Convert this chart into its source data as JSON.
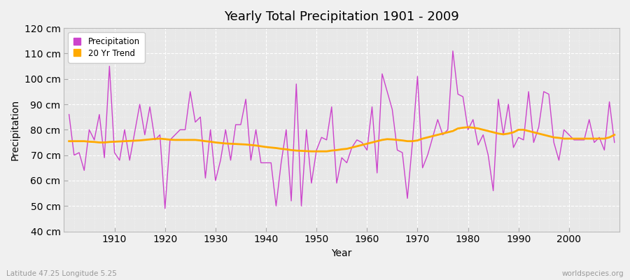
{
  "title": "Yearly Total Precipitation 1901 - 2009",
  "xlabel": "Year",
  "ylabel": "Precipitation",
  "subtitle": "Latitude 47.25 Longitude 5.25",
  "watermark": "worldspecies.org",
  "bg_color": "#f0f0f0",
  "plot_bg_color": "#e8e8e8",
  "precip_color": "#cc44cc",
  "trend_color": "#ffaa00",
  "precip_label": "Precipitation",
  "trend_label": "20 Yr Trend",
  "ylim": [
    40,
    120
  ],
  "yticks": [
    40,
    50,
    60,
    70,
    80,
    90,
    100,
    110,
    120
  ],
  "xticks": [
    1910,
    1920,
    1930,
    1940,
    1950,
    1960,
    1970,
    1980,
    1990,
    2000
  ],
  "years": [
    1901,
    1902,
    1903,
    1904,
    1905,
    1906,
    1907,
    1908,
    1909,
    1910,
    1911,
    1912,
    1913,
    1914,
    1915,
    1916,
    1917,
    1918,
    1919,
    1920,
    1921,
    1922,
    1923,
    1924,
    1925,
    1926,
    1927,
    1928,
    1929,
    1930,
    1931,
    1932,
    1933,
    1934,
    1935,
    1936,
    1937,
    1938,
    1939,
    1940,
    1941,
    1942,
    1943,
    1944,
    1945,
    1946,
    1947,
    1948,
    1949,
    1950,
    1951,
    1952,
    1953,
    1954,
    1955,
    1956,
    1957,
    1958,
    1959,
    1960,
    1961,
    1962,
    1963,
    1964,
    1965,
    1966,
    1967,
    1968,
    1969,
    1970,
    1971,
    1972,
    1973,
    1974,
    1975,
    1976,
    1977,
    1978,
    1979,
    1980,
    1981,
    1982,
    1983,
    1984,
    1985,
    1986,
    1987,
    1988,
    1989,
    1990,
    1991,
    1992,
    1993,
    1994,
    1995,
    1996,
    1997,
    1998,
    1999,
    2000,
    2001,
    2002,
    2003,
    2004,
    2005,
    2006,
    2007,
    2008,
    2009
  ],
  "precip": [
    86,
    70,
    71,
    64,
    80,
    76,
    86,
    69,
    105,
    71,
    68,
    80,
    68,
    79,
    90,
    78,
    89,
    76,
    78,
    49,
    76,
    78,
    80,
    80,
    95,
    83,
    85,
    61,
    80,
    60,
    68,
    80,
    68,
    82,
    82,
    92,
    68,
    80,
    67,
    67,
    67,
    50,
    67,
    80,
    52,
    98,
    50,
    80,
    59,
    72,
    77,
    76,
    89,
    59,
    69,
    67,
    73,
    76,
    75,
    72,
    89,
    63,
    102,
    95,
    88,
    72,
    71,
    53,
    75,
    101,
    65,
    70,
    77,
    84,
    78,
    80,
    111,
    94,
    93,
    80,
    84,
    74,
    78,
    70,
    56,
    92,
    78,
    90,
    73,
    77,
    76,
    95,
    75,
    81,
    95,
    94,
    75,
    68,
    80,
    78,
    76,
    76,
    76,
    84,
    75,
    77,
    72,
    91,
    75
  ],
  "trend": [
    75.5,
    75.5,
    75.5,
    75.5,
    75.3,
    75.2,
    75.0,
    75.0,
    75.2,
    75.3,
    75.4,
    75.5,
    75.6,
    75.7,
    75.8,
    76.0,
    76.2,
    76.4,
    76.5,
    76.3,
    76.1,
    76.0,
    76.0,
    76.0,
    76.0,
    76.0,
    75.8,
    75.5,
    75.3,
    75.0,
    74.8,
    74.6,
    74.5,
    74.4,
    74.3,
    74.2,
    74.0,
    73.8,
    73.5,
    73.2,
    73.0,
    72.8,
    72.5,
    72.3,
    72.0,
    71.8,
    71.7,
    71.6,
    71.5,
    71.5,
    71.5,
    71.5,
    71.8,
    72.0,
    72.3,
    72.5,
    73.0,
    73.5,
    74.0,
    74.5,
    75.0,
    75.5,
    76.0,
    76.3,
    76.2,
    76.0,
    75.8,
    75.5,
    75.5,
    75.8,
    76.5,
    77.0,
    77.5,
    78.0,
    78.5,
    79.0,
    79.5,
    80.5,
    80.8,
    81.0,
    80.8,
    80.5,
    80.0,
    79.5,
    79.0,
    78.5,
    78.2,
    78.5,
    79.0,
    80.0,
    80.0,
    79.5,
    79.0,
    78.5,
    78.0,
    77.5,
    77.0,
    76.8,
    76.5,
    76.5,
    76.5,
    76.5,
    76.5,
    76.5,
    76.5,
    76.5,
    76.5,
    77.0,
    78.0
  ]
}
